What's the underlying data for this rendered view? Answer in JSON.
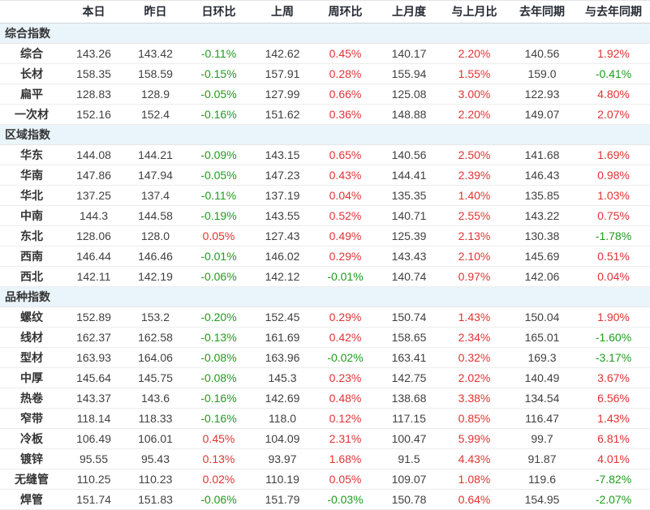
{
  "table": {
    "columns": [
      "本日",
      "昨日",
      "日环比",
      "上周",
      "周环比",
      "上月度",
      "与上月比",
      "去年同期",
      "与去年同期"
    ],
    "sections": [
      {
        "label": "综合指数",
        "rows": [
          {
            "label": "综合",
            "values": [
              "143.26",
              "143.42",
              "-0.11%",
              "142.62",
              "0.45%",
              "140.17",
              "2.20%",
              "140.56",
              "1.92%"
            ]
          },
          {
            "label": "长材",
            "values": [
              "158.35",
              "158.59",
              "-0.15%",
              "157.91",
              "0.28%",
              "155.94",
              "1.55%",
              "159.0",
              "-0.41%"
            ]
          },
          {
            "label": "扁平",
            "values": [
              "128.83",
              "128.9",
              "-0.05%",
              "127.99",
              "0.66%",
              "125.08",
              "3.00%",
              "122.93",
              "4.80%"
            ]
          },
          {
            "label": "一次材",
            "values": [
              "152.16",
              "152.4",
              "-0.16%",
              "151.62",
              "0.36%",
              "148.88",
              "2.20%",
              "149.07",
              "2.07%"
            ]
          }
        ]
      },
      {
        "label": "区域指数",
        "rows": [
          {
            "label": "华东",
            "values": [
              "144.08",
              "144.21",
              "-0.09%",
              "143.15",
              "0.65%",
              "140.56",
              "2.50%",
              "141.68",
              "1.69%"
            ]
          },
          {
            "label": "华南",
            "values": [
              "147.86",
              "147.94",
              "-0.05%",
              "147.23",
              "0.43%",
              "144.41",
              "2.39%",
              "146.43",
              "0.98%"
            ]
          },
          {
            "label": "华北",
            "values": [
              "137.25",
              "137.4",
              "-0.11%",
              "137.19",
              "0.04%",
              "135.35",
              "1.40%",
              "135.85",
              "1.03%"
            ]
          },
          {
            "label": "中南",
            "values": [
              "144.3",
              "144.58",
              "-0.19%",
              "143.55",
              "0.52%",
              "140.71",
              "2.55%",
              "143.22",
              "0.75%"
            ]
          },
          {
            "label": "东北",
            "values": [
              "128.06",
              "128.0",
              "0.05%",
              "127.43",
              "0.49%",
              "125.39",
              "2.13%",
              "130.38",
              "-1.78%"
            ]
          },
          {
            "label": "西南",
            "values": [
              "146.44",
              "146.46",
              "-0.01%",
              "146.02",
              "0.29%",
              "143.43",
              "2.10%",
              "145.69",
              "0.51%"
            ]
          },
          {
            "label": "西北",
            "values": [
              "142.11",
              "142.19",
              "-0.06%",
              "142.12",
              "-0.01%",
              "140.74",
              "0.97%",
              "142.06",
              "0.04%"
            ]
          }
        ]
      },
      {
        "label": "品种指数",
        "rows": [
          {
            "label": "螺纹",
            "values": [
              "152.89",
              "153.2",
              "-0.20%",
              "152.45",
              "0.29%",
              "150.74",
              "1.43%",
              "150.04",
              "1.90%"
            ]
          },
          {
            "label": "线材",
            "values": [
              "162.37",
              "162.58",
              "-0.13%",
              "161.69",
              "0.42%",
              "158.65",
              "2.34%",
              "165.01",
              "-1.60%"
            ]
          },
          {
            "label": "型材",
            "values": [
              "163.93",
              "164.06",
              "-0.08%",
              "163.96",
              "-0.02%",
              "163.41",
              "0.32%",
              "169.3",
              "-3.17%"
            ]
          },
          {
            "label": "中厚",
            "values": [
              "145.64",
              "145.75",
              "-0.08%",
              "145.3",
              "0.23%",
              "142.75",
              "2.02%",
              "140.49",
              "3.67%"
            ]
          },
          {
            "label": "热卷",
            "values": [
              "143.37",
              "143.6",
              "-0.16%",
              "142.69",
              "0.48%",
              "138.68",
              "3.38%",
              "134.54",
              "6.56%"
            ]
          },
          {
            "label": "窄带",
            "values": [
              "118.14",
              "118.33",
              "-0.16%",
              "118.0",
              "0.12%",
              "117.15",
              "0.85%",
              "116.47",
              "1.43%"
            ]
          },
          {
            "label": "冷板",
            "values": [
              "106.49",
              "106.01",
              "0.45%",
              "104.09",
              "2.31%",
              "100.47",
              "5.99%",
              "99.7",
              "6.81%"
            ]
          },
          {
            "label": "镀锌",
            "values": [
              "95.55",
              "95.43",
              "0.13%",
              "93.97",
              "1.68%",
              "91.5",
              "4.43%",
              "91.87",
              "4.01%"
            ]
          },
          {
            "label": "无缝管",
            "values": [
              "110.25",
              "110.23",
              "0.02%",
              "110.19",
              "0.05%",
              "109.07",
              "1.08%",
              "119.6",
              "-7.82%"
            ]
          },
          {
            "label": "焊管",
            "values": [
              "151.74",
              "151.83",
              "-0.06%",
              "151.79",
              "-0.03%",
              "150.78",
              "0.64%",
              "154.95",
              "-2.07%"
            ]
          }
        ]
      }
    ],
    "colors": {
      "positive": "#e23333",
      "negative": "#1e9c1e",
      "section_background": "#eaf4fb",
      "header_text": "#262a33",
      "cell_text": "#404040"
    }
  }
}
